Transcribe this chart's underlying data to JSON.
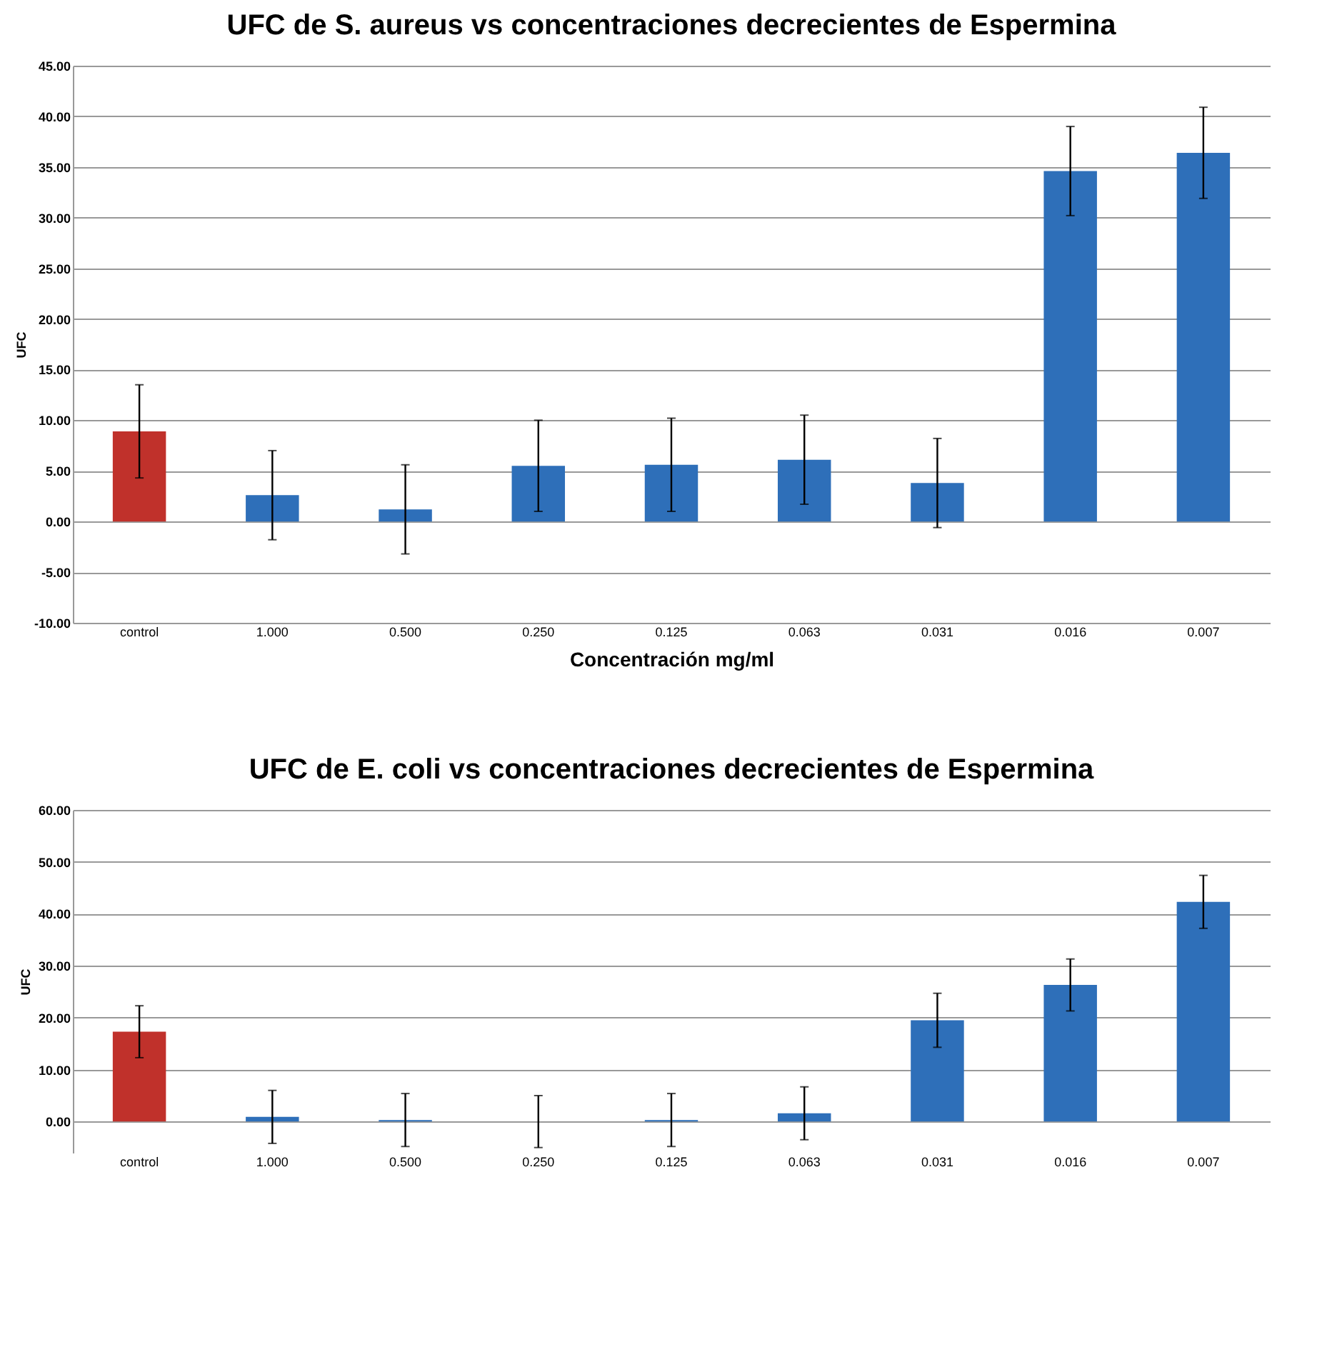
{
  "chart_data": [
    {
      "type": "bar",
      "title": "UFC de S. aureus vs concentraciones decrecientes de Espermina",
      "xlabel": "Concentración mg/ml",
      "ylabel": "UFC",
      "categories": [
        "control",
        "1.000",
        "0.500",
        "0.250",
        "0.125",
        "0.063",
        "0.031",
        "0.016",
        "0.007"
      ],
      "values": [
        8.9,
        2.6,
        1.2,
        5.5,
        5.6,
        6.1,
        3.8,
        34.6,
        36.4
      ],
      "errors": [
        4.6,
        4.4,
        4.4,
        4.5,
        4.6,
        4.4,
        4.4,
        4.4,
        4.5
      ],
      "colors": [
        "#c0312b",
        "#2e6fb9",
        "#2e6fb9",
        "#2e6fb9",
        "#2e6fb9",
        "#2e6fb9",
        "#2e6fb9",
        "#2e6fb9",
        "#2e6fb9"
      ],
      "ylim": [
        -10,
        45
      ],
      "yticks": [
        {
          "value": -10,
          "label": "-10.00"
        },
        {
          "value": -5,
          "label": "-5.00"
        },
        {
          "value": 0,
          "label": "0.00"
        },
        {
          "value": 5,
          "label": "5.00"
        },
        {
          "value": 10,
          "label": "10.00"
        },
        {
          "value": 15,
          "label": "15.00"
        },
        {
          "value": 20,
          "label": "20.00"
        },
        {
          "value": 25,
          "label": "25.00"
        },
        {
          "value": 30,
          "label": "30.00"
        },
        {
          "value": 35,
          "label": "35.00"
        },
        {
          "value": 40,
          "label": "40.00"
        },
        {
          "value": 45,
          "label": "45.00"
        }
      ],
      "grid": "y",
      "legend": false
    },
    {
      "type": "bar",
      "title": "UFC de E. coli  vs concentraciones decrecientes de Espermina",
      "ylabel": "UFC",
      "categories": [
        "control",
        "1.000",
        "0.500",
        "0.250",
        "0.125",
        "0.063",
        "0.031",
        "0.016",
        "0.007"
      ],
      "values": [
        17.3,
        0.9,
        0.3,
        0,
        0.3,
        1.6,
        19.5,
        26.3,
        42.3
      ],
      "errors": [
        5,
        5.1,
        5.1,
        5,
        5.1,
        5.1,
        5.2,
        5,
        5.1
      ],
      "colors": [
        "#c0312b",
        "#2e6fb9",
        "#2e6fb9",
        "#2e6fb9",
        "#2e6fb9",
        "#2e6fb9",
        "#2e6fb9",
        "#2e6fb9",
        "#2e6fb9"
      ],
      "ylim": [
        -6,
        60
      ],
      "yticks": [
        {
          "value": 0,
          "label": "0.00"
        },
        {
          "value": 10,
          "label": "10.00"
        },
        {
          "value": 20,
          "label": "20.00"
        },
        {
          "value": 30,
          "label": "30.00"
        },
        {
          "value": 40,
          "label": "40.00"
        },
        {
          "value": 50,
          "label": "50.00"
        },
        {
          "value": 60,
          "label": "60.00"
        }
      ],
      "grid": "y",
      "legend": false
    }
  ]
}
